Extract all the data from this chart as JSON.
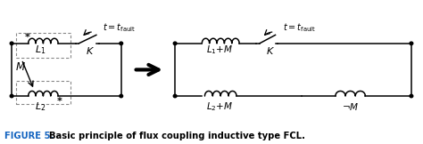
{
  "fig_width": 4.74,
  "fig_height": 1.62,
  "dpi": 100,
  "bg_color": "#ffffff",
  "caption_prefix": "FIGURE 5.",
  "caption_text": "Basic principle of flux coupling inductive type FCL.",
  "caption_color": "#1565c0",
  "caption_fontsize": 7.2,
  "body_color": "#000000",
  "xlim": [
    0,
    10
  ],
  "ylim": [
    -0.5,
    3.2
  ]
}
